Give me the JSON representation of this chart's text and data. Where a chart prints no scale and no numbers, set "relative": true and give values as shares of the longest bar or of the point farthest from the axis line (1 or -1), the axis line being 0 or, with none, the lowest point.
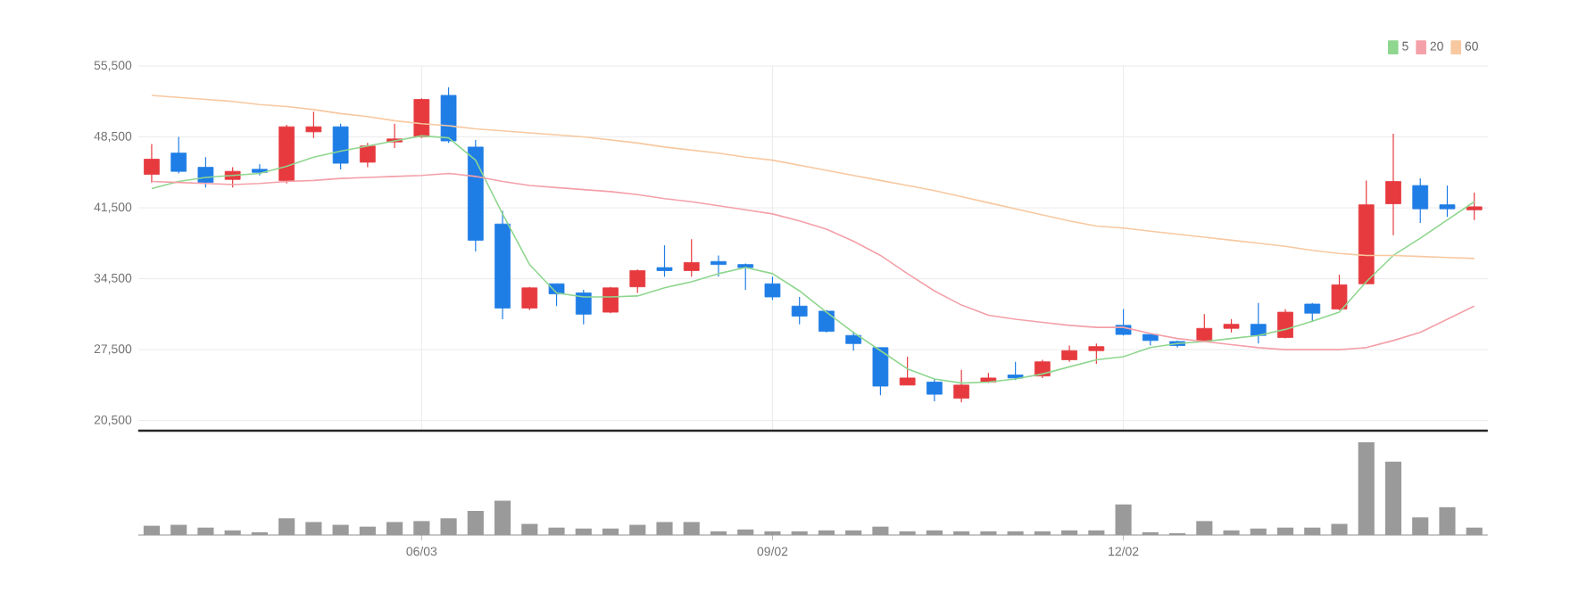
{
  "chart_data": [
    {
      "type": "candlestick",
      "categories": [
        null,
        null,
        null,
        null,
        null,
        null,
        null,
        null,
        null,
        null,
        null,
        null,
        null,
        null,
        null,
        null,
        null,
        null,
        null,
        null,
        null,
        null,
        null,
        null,
        null,
        null,
        null,
        null,
        null,
        null,
        null,
        null,
        null,
        null,
        null,
        null,
        null,
        null,
        null,
        null,
        null,
        null,
        null,
        null,
        null,
        null,
        null,
        null,
        null,
        null
      ],
      "ohlc": [
        [
          44800,
          47800,
          44000,
          46300
        ],
        [
          46900,
          48500,
          44900,
          45100
        ],
        [
          45500,
          46500,
          43500,
          44000
        ],
        [
          44300,
          45500,
          43500,
          45100
        ],
        [
          45300,
          45800,
          44700,
          45000
        ],
        [
          44200,
          49700,
          43900,
          49500
        ],
        [
          49000,
          51000,
          48400,
          49500
        ],
        [
          49500,
          49800,
          45300,
          45900
        ],
        [
          46000,
          47900,
          45500,
          47600
        ],
        [
          48000,
          49800,
          47400,
          48300
        ],
        [
          48500,
          52300,
          48400,
          52200
        ],
        [
          52600,
          53400,
          47900,
          48100
        ],
        [
          47500,
          48200,
          37200,
          38300
        ],
        [
          39900,
          41200,
          30500,
          31600
        ],
        [
          31600,
          33700,
          31400,
          33600
        ],
        [
          34000,
          34000,
          31800,
          33000
        ],
        [
          33100,
          33400,
          30000,
          31000
        ],
        [
          31200,
          33700,
          31100,
          33600
        ],
        [
          33700,
          35400,
          33100,
          35300
        ],
        [
          35600,
          37800,
          34700,
          35300
        ],
        [
          35300,
          38400,
          34700,
          36100
        ],
        [
          36200,
          36800,
          34700,
          35900
        ],
        [
          35900,
          36000,
          33400,
          35600
        ],
        [
          34000,
          34700,
          32400,
          32700
        ],
        [
          31800,
          32700,
          30000,
          30800
        ],
        [
          31300,
          31400,
          29200,
          29300
        ],
        [
          28900,
          29300,
          27400,
          28100
        ],
        [
          27700,
          27700,
          23000,
          23900
        ],
        [
          24000,
          26800,
          24000,
          24700
        ],
        [
          24300,
          24600,
          22400,
          23100
        ],
        [
          22700,
          25500,
          22300,
          24000
        ],
        [
          24300,
          25200,
          24200,
          24700
        ],
        [
          25000,
          26300,
          24500,
          24700
        ],
        [
          24900,
          26500,
          24700,
          26300
        ],
        [
          26500,
          27900,
          26300,
          27400
        ],
        [
          27400,
          28100,
          26100,
          27800
        ],
        [
          29900,
          31500,
          28900,
          29000
        ],
        [
          29000,
          29100,
          27900,
          28400
        ],
        [
          28300,
          28400,
          27700,
          27900
        ],
        [
          28400,
          31000,
          28400,
          29600
        ],
        [
          29600,
          30500,
          29200,
          30000
        ],
        [
          30000,
          32100,
          28100,
          28900
        ],
        [
          28700,
          31500,
          28600,
          31200
        ],
        [
          32000,
          32100,
          30300,
          31100
        ],
        [
          31500,
          34900,
          31400,
          33900
        ],
        [
          34000,
          44200,
          34000,
          41800
        ],
        [
          41900,
          48800,
          38800,
          44100
        ],
        [
          43700,
          44400,
          40000,
          41400
        ],
        [
          41800,
          43700,
          40600,
          41400
        ],
        [
          41300,
          43000,
          40300,
          41600
        ]
      ],
      "colors": [
        "#e63a3f",
        "#1f7de6",
        "#1f7de6",
        "#e63a3f",
        "#1f7de6",
        "#e63a3f",
        "#e63a3f",
        "#1f7de6",
        "#e63a3f",
        "#e63a3f",
        "#e63a3f",
        "#1f7de6",
        "#1f7de6",
        "#1f7de6",
        "#e63a3f",
        "#1f7de6",
        "#1f7de6",
        "#e63a3f",
        "#e63a3f",
        "#1f7de6",
        "#e63a3f",
        "#1f7de6",
        "#1f7de6",
        "#1f7de6",
        "#1f7de6",
        "#1f7de6",
        "#1f7de6",
        "#1f7de6",
        "#e63a3f",
        "#1f7de6",
        "#e63a3f",
        "#e63a3f",
        "#1f7de6",
        "#e63a3f",
        "#e63a3f",
        "#e63a3f",
        "#1f7de6",
        "#1f7de6",
        "#1f7de6",
        "#e63a3f",
        "#e63a3f",
        "#1f7de6",
        "#e63a3f",
        "#1f7de6",
        "#e63a3f",
        "#e63a3f",
        "#e63a3f",
        "#1f7de6",
        "#1f7de6",
        "#e63a3f"
      ],
      "series": [
        {
          "name": "5",
          "type": "line",
          "color": "#8fd68f",
          "values": [
            43400,
            44100,
            44500,
            44700,
            44900,
            45600,
            46500,
            47100,
            47600,
            48100,
            48600,
            48400,
            46200,
            40900,
            35900,
            33100,
            32700,
            32700,
            32800,
            33600,
            34200,
            35000,
            35600,
            35000,
            33300,
            31200,
            29200,
            27400,
            25600,
            24600,
            24200,
            24300,
            24600,
            25100,
            25800,
            26500,
            26800,
            27700,
            28100,
            28300,
            28600,
            28900,
            29500,
            30300,
            31200,
            34200,
            36800,
            38500,
            40300,
            42100
          ]
        },
        {
          "name": "20",
          "type": "line",
          "color": "#f4a0a8",
          "values": [
            44100,
            44000,
            43900,
            43800,
            43900,
            44100,
            44200,
            44400,
            44500,
            44600,
            44700,
            44900,
            44600,
            44100,
            43700,
            43500,
            43300,
            43100,
            42800,
            42400,
            42100,
            41700,
            41300,
            40900,
            40200,
            39400,
            38200,
            36800,
            35000,
            33300,
            31900,
            30900,
            30500,
            30200,
            29900,
            29700,
            29700,
            29100,
            28600,
            28300,
            28000,
            27700,
            27500,
            27500,
            27500,
            27700,
            28400,
            29200,
            30500,
            31800
          ]
        },
        {
          "name": "60",
          "type": "line",
          "color": "#f8c8a0",
          "values": [
            52600,
            52400,
            52200,
            52000,
            51700,
            51500,
            51200,
            50800,
            50500,
            50100,
            49800,
            49600,
            49300,
            49100,
            48900,
            48700,
            48500,
            48200,
            47900,
            47500,
            47200,
            46900,
            46500,
            46200,
            45700,
            45200,
            44700,
            44200,
            43700,
            43200,
            42600,
            42000,
            41400,
            40800,
            40200,
            39700,
            39500,
            39200,
            38900,
            38600,
            38300,
            38000,
            37700,
            37300,
            37000,
            36800,
            36800,
            36700,
            36600,
            36500
          ]
        }
      ],
      "ylim": [
        19500,
        55500
      ],
      "yticks": [
        {
          "value": 20500,
          "label": "20,500"
        },
        {
          "value": 27500,
          "label": "27,500"
        },
        {
          "value": 34500,
          "label": "34,500"
        },
        {
          "value": 41500,
          "label": "41,500"
        },
        {
          "value": 48500,
          "label": "48,500"
        },
        {
          "value": 55500,
          "label": "55,500"
        }
      ],
      "grid": true,
      "legend": "top right",
      "tick_labels": "y",
      "marker": "none",
      "line_style": "solid"
    },
    {
      "type": "bar",
      "relative": true,
      "color": "#9a9a9a",
      "tick_labels": "x",
      "categories": [
        null,
        null,
        null,
        null,
        null,
        null,
        null,
        null,
        null,
        null,
        "06/03",
        null,
        null,
        null,
        null,
        null,
        null,
        null,
        null,
        null,
        null,
        null,
        null,
        "09/02",
        null,
        null,
        null,
        null,
        null,
        null,
        null,
        null,
        null,
        null,
        null,
        null,
        "12/02",
        null,
        null,
        null,
        null,
        null,
        null,
        null,
        null,
        null,
        null,
        null,
        null,
        null
      ],
      "values": [
        0.1,
        0.11,
        0.08,
        0.05,
        0.03,
        0.18,
        0.14,
        0.11,
        0.09,
        0.14,
        0.15,
        0.18,
        0.26,
        0.37,
        0.12,
        0.08,
        0.07,
        0.07,
        0.11,
        0.14,
        0.14,
        0.04,
        0.06,
        0.04,
        0.04,
        0.05,
        0.05,
        0.09,
        0.04,
        0.05,
        0.04,
        0.04,
        0.04,
        0.04,
        0.05,
        0.05,
        0.33,
        0.03,
        0.02,
        0.15,
        0.05,
        0.07,
        0.08,
        0.08,
        0.12,
        1,
        0.79,
        0.19,
        0.3,
        0.08
      ]
    }
  ]
}
